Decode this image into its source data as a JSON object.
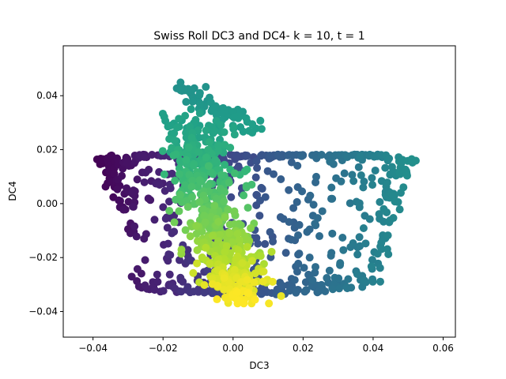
{
  "chart_data": {
    "type": "scatter",
    "title": "Swiss Roll DC3 and DC4- k = 10, t = 1",
    "xlabel": "DC3",
    "ylabel": "DC4",
    "xlim": [
      -0.0485,
      0.0635
    ],
    "ylim": [
      -0.0495,
      0.0585
    ],
    "xticks": [
      -0.04,
      -0.02,
      0.0,
      0.02,
      0.04,
      0.06
    ],
    "xtick_labels": [
      "−0.04",
      "−0.02",
      "0.00",
      "0.02",
      "0.04",
      "0.06"
    ],
    "yticks": [
      -0.04,
      -0.02,
      0.0,
      0.02,
      0.04
    ],
    "ytick_labels": [
      "−0.04",
      "−0.02",
      "0.00",
      "0.02",
      "0.04"
    ],
    "grid": false,
    "legend": false,
    "colormap": "viridis",
    "marker_color_range": [
      "#440154",
      "#fde725"
    ],
    "point_count": 1300
  }
}
